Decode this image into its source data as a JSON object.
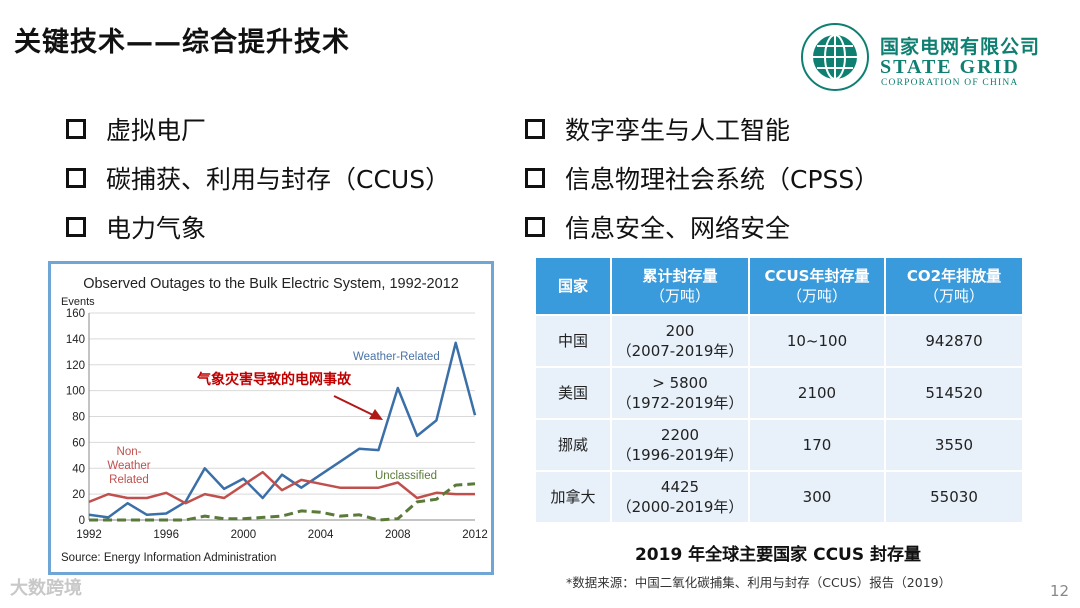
{
  "slide": {
    "title": "关键技术——综合提升技术",
    "page_number": "12"
  },
  "logo": {
    "cn_name": "国家电网有限公司",
    "en_name": "STATE GRID",
    "en_sub": "CORPORATION OF CHINA",
    "brand_color": "#0e7f71"
  },
  "bullets_left": [
    "虚拟电厂",
    "碳捕获、利用与封存（CCUS）",
    "电力气象"
  ],
  "bullets_right": [
    "数字孪生与人工智能",
    "信息物理社会系统（CPSS）",
    "信息安全、网络安全"
  ],
  "chart_data": {
    "type": "line",
    "title": "Observed Outages to the Bulk Electric System, 1992-2012",
    "ylabel": "Events",
    "source": "Source: Energy Information Administration",
    "annotation": "气象灾害导致的电网事故",
    "xlim": [
      1992,
      2012
    ],
    "ylim": [
      0,
      160
    ],
    "x_ticks": [
      1992,
      1996,
      2000,
      2004,
      2008,
      2012
    ],
    "y_ticks": [
      0,
      20,
      40,
      60,
      80,
      100,
      120,
      140,
      160
    ],
    "grid": true,
    "x": [
      1992,
      1993,
      1994,
      1995,
      1996,
      1997,
      1998,
      1999,
      2000,
      2001,
      2002,
      2003,
      2004,
      2005,
      2006,
      2007,
      2008,
      2009,
      2010,
      2011,
      2012
    ],
    "series": [
      {
        "name": "Weather-Related",
        "color": "#3b6fa8",
        "dash": false,
        "values": [
          4,
          2,
          13,
          4,
          5,
          14,
          40,
          24,
          32,
          17,
          35,
          25,
          35,
          45,
          55,
          54,
          102,
          65,
          77,
          137,
          81
        ]
      },
      {
        "name": "Non-Weather Related",
        "color": "#c0504d",
        "dash": false,
        "values": [
          14,
          20,
          17,
          17,
          21,
          13,
          20,
          17,
          27,
          37,
          23,
          31,
          28,
          25,
          25,
          25,
          29,
          17,
          21,
          20,
          20
        ]
      },
      {
        "name": "Unclassified",
        "color": "#5a7a3a",
        "dash": true,
        "values": [
          0,
          0,
          0,
          0,
          0,
          0,
          3,
          1,
          1,
          2,
          3,
          7,
          6,
          3,
          4,
          0,
          1,
          14,
          16,
          27,
          28
        ]
      }
    ],
    "series_labels": {
      "weather": "Weather-Related",
      "non_weather": [
        "Non-",
        "Weather",
        "Related"
      ],
      "unclassified": "Unclassified"
    }
  },
  "table": {
    "headers": [
      {
        "main": "国家",
        "sub": ""
      },
      {
        "main": "累计封存量",
        "sub": "（万吨）"
      },
      {
        "main": "CCUS年封存量",
        "sub": "（万吨）"
      },
      {
        "main": "CO2年排放量",
        "sub": "（万吨）"
      }
    ],
    "rows": [
      {
        "country": "中国",
        "cum_main": "200",
        "cum_sub": "（2007-2019年）",
        "annual": "10~100",
        "emission": "942870"
      },
      {
        "country": "美国",
        "cum_main": "> 5800",
        "cum_sub": "（1972-2019年）",
        "annual": "2100",
        "emission": "514520"
      },
      {
        "country": "挪威",
        "cum_main": "2200",
        "cum_sub": "（1996-2019年）",
        "annual": "170",
        "emission": "3550"
      },
      {
        "country": "加拿大",
        "cum_main": "4425",
        "cum_sub": "（2000-2019年）",
        "annual": "300",
        "emission": "55030"
      }
    ],
    "caption": "2019 年全球主要国家 CCUS 封存量",
    "source_note": "*数据来源：中国二氧化碳捕集、利用与封存（CCUS）报告（2019）",
    "header_color": "#3a9bdc",
    "cell_color": "#e8f1fa"
  },
  "watermark": "大数跨境"
}
